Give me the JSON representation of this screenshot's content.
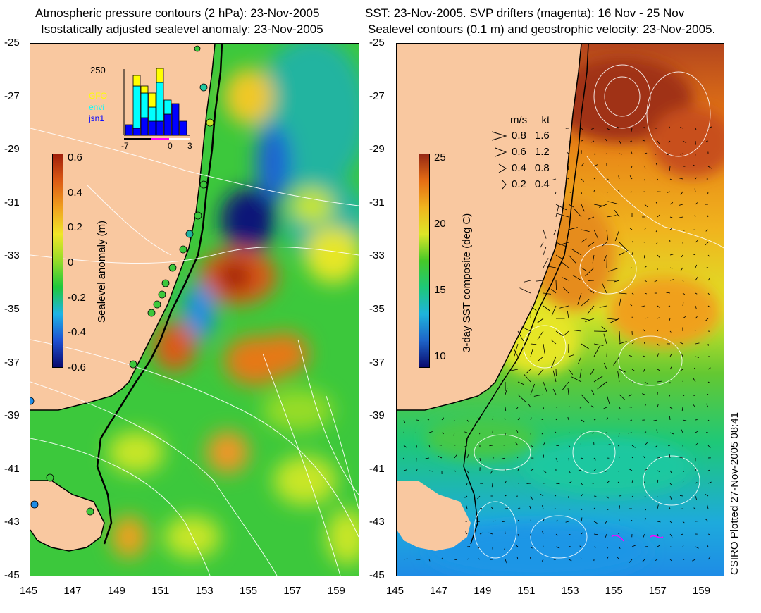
{
  "left_panel": {
    "title_line1": "Atmospheric pressure contours (2 hPa): 23-Nov-2005",
    "title_line2": "Isostatically adjusted sealevel anomaly: 23-Nov-2005",
    "colorbar": {
      "label": "Sealevel anomaly (m)",
      "ticks": [
        "0.6",
        "0.4",
        "0.2",
        "0",
        "-0.2",
        "-0.4",
        "-0.6"
      ],
      "colors": [
        "#0a0a6e",
        "#1e50d2",
        "#1eb4e6",
        "#1ec83c",
        "#96dc28",
        "#f0e628",
        "#f0a01e",
        "#dc5a14",
        "#a01e0a"
      ]
    },
    "inset": {
      "ymax_label": "250",
      "legend": [
        {
          "label": "GFO",
          "color": "#ffff00"
        },
        {
          "label": "envi",
          "color": "#00ffff"
        },
        {
          "label": "jsn1",
          "color": "#0000ff"
        }
      ],
      "x_ticks": [
        "-7",
        "0",
        "3"
      ]
    }
  },
  "right_panel": {
    "title_line1": "SST: 23-Nov-2005. SVP drifters (magenta): 16 Nov - 25 Nov",
    "title_line2": "Sealevel contours (0.1 m) and geostrophic velocity: 23-Nov-2005.",
    "colorbar": {
      "label": "3-day SST composite (deg C)",
      "ticks": [
        "25",
        "20",
        "15",
        "10"
      ],
      "colors": [
        "#0a0a6e",
        "#1e64c8",
        "#1eb4dc",
        "#1ec878",
        "#46c828",
        "#dce628",
        "#f0b41e",
        "#e66e14",
        "#962814"
      ]
    },
    "velocity_legend": {
      "header_ms": "m/s",
      "header_kt": "kt",
      "rows": [
        {
          "ms": "0.8",
          "kt": "1.6"
        },
        {
          "ms": "0.6",
          "kt": "1.2"
        },
        {
          "ms": "0.4",
          "kt": "0.8"
        },
        {
          "ms": "0.2",
          "kt": "0.4"
        }
      ]
    }
  },
  "axes": {
    "lat_ticks": [
      "-25",
      "-27",
      "-29",
      "-31",
      "-33",
      "-35",
      "-37",
      "-39",
      "-41",
      "-43",
      "-45"
    ],
    "lon_ticks": [
      "145",
      "147",
      "149",
      "151",
      "153",
      "155",
      "157",
      "159"
    ]
  },
  "credit": "CSIRO Plotted 27-Nov-2005 08:41",
  "colors": {
    "land": "#f9c8a0",
    "ocean_green": "#3cc83c",
    "coast": "#000000",
    "contour": "#ffffff"
  }
}
